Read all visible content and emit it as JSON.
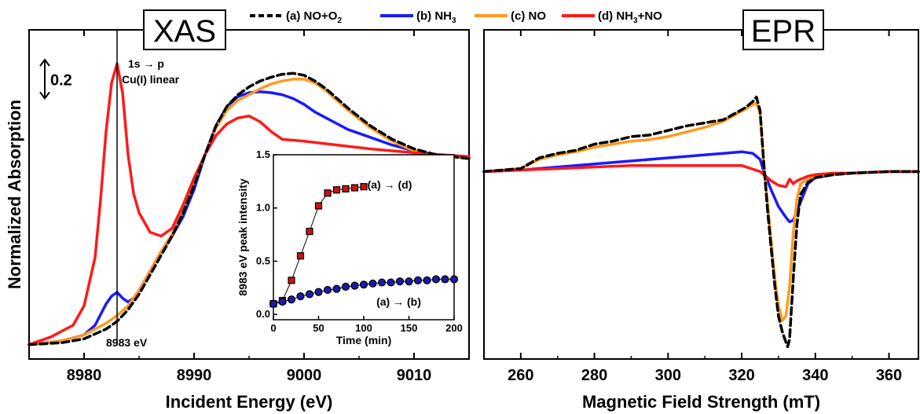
{
  "colors": {
    "a": "#000000",
    "b": "#1a1aff",
    "c": "#ff9a1f",
    "d": "#ff1a1a",
    "marker_square_fill": "#cc1111",
    "marker_circle_fill": "#1a1aaa"
  },
  "legend": [
    {
      "key": "a",
      "label": "(a) NO+O",
      "sub": "2",
      "suffix": "",
      "style": "dashed"
    },
    {
      "key": "b",
      "label": "(b) NH",
      "sub": "3",
      "suffix": "",
      "style": "solid"
    },
    {
      "key": "c",
      "label": "(c) NO",
      "sub": "",
      "suffix": "",
      "style": "solid"
    },
    {
      "key": "d",
      "label": "(d) NH",
      "sub": "3",
      "suffix": "+NO",
      "style": "solid"
    }
  ],
  "chart_data": [
    {
      "type": "line",
      "panel_label": "XAS",
      "xlabel": "Incident Energy (eV)",
      "ylabel": "Normalized Absorption",
      "xlim": [
        8975,
        9015
      ],
      "xticks": [
        8980,
        8990,
        9000,
        9010
      ],
      "ylim": [
        -0.05,
        1.6
      ],
      "scale_bar": {
        "label": "0.2",
        "value": 0.2
      },
      "annotations": {
        "peak_line": "1s → p",
        "peak_line2": "Cu(I) linear",
        "energy_marker": "8983 eV",
        "energy_marker_x": 8983
      },
      "series": [
        {
          "key": "a",
          "name": "(a) NO+O2",
          "x": [
            8975,
            8978,
            8980,
            8982,
            8983,
            8984,
            8985,
            8986,
            8987,
            8988,
            8989,
            8990,
            8991,
            8992,
            8993,
            8994,
            8995,
            8996,
            8997,
            8998,
            8999,
            9000,
            9001,
            9002,
            9003,
            9004,
            9006,
            9008,
            9010,
            9012,
            9015
          ],
          "y": [
            0.0,
            0.01,
            0.03,
            0.08,
            0.12,
            0.18,
            0.26,
            0.36,
            0.46,
            0.56,
            0.68,
            0.82,
            0.98,
            1.13,
            1.23,
            1.29,
            1.33,
            1.36,
            1.38,
            1.395,
            1.4,
            1.39,
            1.36,
            1.32,
            1.27,
            1.22,
            1.13,
            1.06,
            1.01,
            0.98,
            0.96
          ]
        },
        {
          "key": "b",
          "name": "(b) NH3",
          "x": [
            8975,
            8978,
            8980,
            8981,
            8982,
            8982.5,
            8983,
            8983.5,
            8984,
            8984.5,
            8985,
            8986,
            8987,
            8988,
            8989,
            8990,
            8991,
            8992,
            8993,
            8994,
            8995,
            8996,
            8997,
            8998,
            8999,
            9000,
            9001,
            9002,
            9003,
            9004,
            9006,
            9008,
            9010,
            9012,
            9015
          ],
          "y": [
            0.0,
            0.02,
            0.05,
            0.1,
            0.21,
            0.25,
            0.27,
            0.24,
            0.22,
            0.24,
            0.28,
            0.38,
            0.48,
            0.56,
            0.66,
            0.8,
            0.98,
            1.13,
            1.23,
            1.28,
            1.3,
            1.305,
            1.3,
            1.29,
            1.27,
            1.24,
            1.2,
            1.17,
            1.14,
            1.11,
            1.07,
            1.03,
            1.0,
            0.98,
            0.96
          ]
        },
        {
          "key": "c",
          "name": "(c) NO",
          "x": [
            8975,
            8978,
            8980,
            8982,
            8983,
            8984,
            8985,
            8986,
            8987,
            8988,
            8989,
            8990,
            8991,
            8992,
            8993,
            8994,
            8995,
            8996,
            8997,
            8998,
            8999,
            9000,
            9001,
            9002,
            9003,
            9004,
            9006,
            9008,
            9010,
            9012,
            9015
          ],
          "y": [
            0.0,
            0.02,
            0.05,
            0.11,
            0.15,
            0.2,
            0.28,
            0.38,
            0.48,
            0.57,
            0.69,
            0.84,
            0.98,
            1.12,
            1.21,
            1.26,
            1.29,
            1.32,
            1.345,
            1.36,
            1.37,
            1.37,
            1.35,
            1.31,
            1.26,
            1.21,
            1.12,
            1.05,
            1.0,
            0.98,
            0.96
          ]
        },
        {
          "key": "d",
          "name": "(d) NH3+NO",
          "x": [
            8975,
            8977,
            8979,
            8980,
            8981,
            8981.5,
            8982,
            8982.5,
            8983,
            8983.5,
            8984,
            8984.5,
            8985,
            8986,
            8987,
            8988,
            8989,
            8990,
            8991,
            8992,
            8993,
            8994,
            8995,
            8996,
            8997,
            8998,
            9000,
            9003,
            9006,
            9010,
            9015
          ],
          "y": [
            0.0,
            0.04,
            0.1,
            0.2,
            0.45,
            0.75,
            1.1,
            1.35,
            1.45,
            1.3,
            0.98,
            0.78,
            0.68,
            0.58,
            0.56,
            0.6,
            0.72,
            0.86,
            0.98,
            1.08,
            1.14,
            1.17,
            1.18,
            1.15,
            1.1,
            1.06,
            1.05,
            1.03,
            1.01,
            0.99,
            0.97
          ]
        }
      ],
      "inset": {
        "type": "scatter",
        "xlabel": "Time (min)",
        "ylabel": "8983 eV peak intensity",
        "xlim": [
          0,
          200
        ],
        "ylim": [
          -0.05,
          1.5
        ],
        "xticks": [
          0,
          50,
          100,
          150,
          200
        ],
        "yticks": [
          0.0,
          0.5,
          1.0,
          1.5
        ],
        "series": [
          {
            "name": "(a) → (d)",
            "marker": "square",
            "x": [
              0,
              10,
              20,
              30,
              40,
              50,
              60,
              70,
              80,
              90,
              100
            ],
            "y": [
              0.1,
              0.13,
              0.32,
              0.55,
              0.78,
              1.02,
              1.14,
              1.17,
              1.18,
              1.19,
              1.2
            ]
          },
          {
            "name": "(a) → (b)",
            "marker": "circle",
            "x": [
              0,
              10,
              20,
              30,
              40,
              50,
              60,
              70,
              80,
              90,
              100,
              110,
              120,
              130,
              140,
              150,
              160,
              170,
              180,
              190,
              200
            ],
            "y": [
              0.1,
              0.12,
              0.14,
              0.17,
              0.19,
              0.21,
              0.23,
              0.24,
              0.26,
              0.27,
              0.28,
              0.29,
              0.3,
              0.3,
              0.31,
              0.31,
              0.32,
              0.32,
              0.33,
              0.33,
              0.33
            ]
          }
        ]
      }
    },
    {
      "type": "line",
      "panel_label": "EPR",
      "xlabel": "Magnetic Field Strength (mT)",
      "ylabel": "",
      "xlim": [
        250,
        368
      ],
      "xticks": [
        260,
        280,
        300,
        320,
        340,
        360
      ],
      "ylim": [
        -1.2,
        0.9
      ],
      "series": [
        {
          "key": "a",
          "name": "(a) NO+O2",
          "x": [
            250,
            260,
            265,
            270,
            275,
            280,
            285,
            290,
            295,
            300,
            305,
            310,
            315,
            318,
            321,
            323,
            324,
            325,
            326,
            327,
            328,
            329,
            330,
            331,
            332,
            332.5,
            333,
            334,
            335,
            336,
            338,
            340,
            345,
            350,
            360,
            368
          ],
          "y": [
            0.0,
            0.02,
            0.09,
            0.12,
            0.14,
            0.18,
            0.2,
            0.23,
            0.24,
            0.27,
            0.3,
            0.32,
            0.34,
            0.38,
            0.42,
            0.46,
            0.49,
            0.4,
            0.05,
            -0.25,
            -0.5,
            -0.75,
            -0.95,
            -1.05,
            -1.12,
            -1.15,
            -1.1,
            -0.7,
            -0.35,
            -0.15,
            -0.07,
            -0.04,
            -0.02,
            -0.01,
            0.0,
            0.0
          ]
        },
        {
          "key": "b",
          "name": "(b) NH3",
          "x": [
            250,
            260,
            270,
            280,
            290,
            300,
            310,
            315,
            320,
            323,
            325,
            326,
            328,
            330,
            332,
            333,
            334,
            336,
            338,
            340,
            345,
            350,
            360,
            368
          ],
          "y": [
            0.0,
            0.01,
            0.03,
            0.05,
            0.07,
            0.09,
            0.11,
            0.12,
            0.13,
            0.12,
            0.08,
            0.0,
            -0.12,
            -0.23,
            -0.3,
            -0.33,
            -0.32,
            -0.2,
            -0.08,
            -0.04,
            -0.02,
            -0.01,
            0.0,
            0.0
          ]
        },
        {
          "key": "c",
          "name": "(c) NO",
          "x": [
            250,
            260,
            265,
            270,
            275,
            280,
            285,
            290,
            295,
            300,
            305,
            310,
            315,
            318,
            321,
            323,
            324,
            325,
            326,
            327,
            328,
            329,
            330,
            331,
            332,
            333,
            334,
            335,
            336,
            338,
            340,
            345,
            350,
            360,
            368
          ],
          "y": [
            0.0,
            0.02,
            0.08,
            0.11,
            0.13,
            0.16,
            0.18,
            0.2,
            0.21,
            0.23,
            0.26,
            0.29,
            0.33,
            0.37,
            0.41,
            0.44,
            0.45,
            0.38,
            0.05,
            -0.2,
            -0.45,
            -0.7,
            -0.88,
            -0.98,
            -0.95,
            -0.75,
            -0.4,
            -0.18,
            -0.08,
            -0.05,
            -0.03,
            -0.02,
            -0.01,
            0.0,
            0.0
          ]
        },
        {
          "key": "d",
          "name": "(d) NH3+NO",
          "x": [
            250,
            260,
            270,
            280,
            290,
            300,
            310,
            320,
            325,
            328,
            330,
            332,
            333,
            334,
            335,
            336,
            338,
            340,
            345,
            350,
            360,
            368
          ],
          "y": [
            0.0,
            0.01,
            0.02,
            0.03,
            0.04,
            0.04,
            0.04,
            0.04,
            0.0,
            -0.06,
            -0.09,
            -0.1,
            -0.05,
            -0.08,
            -0.06,
            -0.05,
            -0.03,
            -0.02,
            -0.01,
            -0.01,
            0.0,
            0.0
          ]
        }
      ]
    }
  ]
}
